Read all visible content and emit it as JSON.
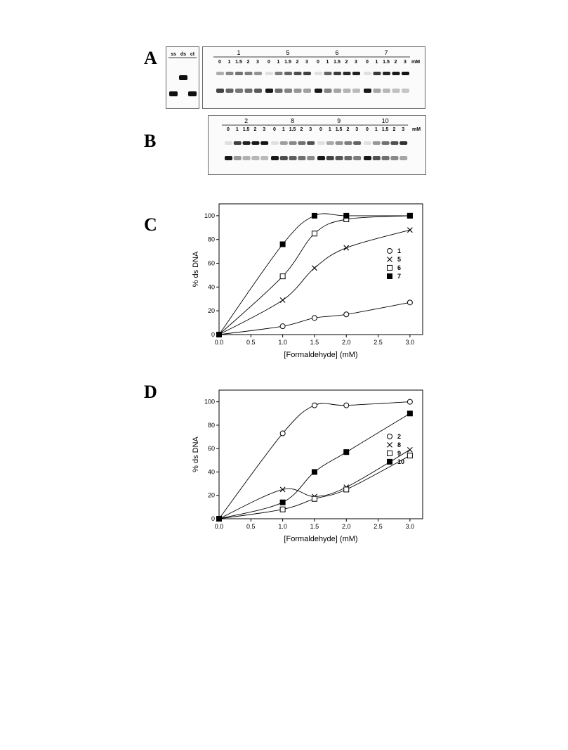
{
  "panel_labels": {
    "a": "A",
    "b": "B",
    "c": "C",
    "d": "D"
  },
  "gel_a": {
    "control_lane_labels": [
      "ss",
      "ds",
      "ct"
    ],
    "groups": [
      {
        "name": "1",
        "levels": [
          0.28,
          0.45,
          0.55,
          0.5,
          0.4
        ]
      },
      {
        "name": "5",
        "levels": [
          0.05,
          0.5,
          0.62,
          0.72,
          0.78
        ]
      },
      {
        "name": "6",
        "levels": [
          0.05,
          0.62,
          0.8,
          0.88,
          0.92
        ]
      },
      {
        "name": "7",
        "levels": [
          0.05,
          0.8,
          0.9,
          0.95,
          0.98
        ]
      }
    ],
    "conc_labels": [
      "0",
      "1",
      "1.5",
      "2",
      "3"
    ],
    "unit": "mM"
  },
  "gel_b": {
    "groups": [
      {
        "name": "2",
        "levels": [
          0.05,
          0.78,
          0.92,
          0.95,
          0.97
        ]
      },
      {
        "name": "8",
        "levels": [
          0.05,
          0.35,
          0.45,
          0.55,
          0.7
        ]
      },
      {
        "name": "9",
        "levels": [
          0.05,
          0.3,
          0.4,
          0.5,
          0.62
        ]
      },
      {
        "name": "10",
        "levels": [
          0.05,
          0.38,
          0.55,
          0.7,
          0.85
        ]
      }
    ],
    "conc_labels": [
      "0",
      "1",
      "1.5",
      "2",
      "3"
    ],
    "unit": "mM"
  },
  "chart_data": [
    {
      "panel": "C",
      "type": "scatter",
      "xlabel": "[Formaldehyde] (mM)",
      "ylabel": "% ds DNA",
      "xlim": [
        0,
        3.2
      ],
      "ylim": [
        0,
        110
      ],
      "xticks": [
        "0.0",
        "0.5",
        "1.0",
        "1.5",
        "2.0",
        "2.5",
        "3.0"
      ],
      "yticks": [
        "0",
        "20",
        "40",
        "60",
        "80",
        "100"
      ],
      "legend_position": "right",
      "series": [
        {
          "name": "1",
          "marker": "open-circle",
          "x": [
            0,
            1,
            1.5,
            2,
            3
          ],
          "y": [
            0,
            7,
            14,
            17,
            27
          ]
        },
        {
          "name": "5",
          "marker": "cross",
          "x": [
            0,
            1,
            1.5,
            2,
            3
          ],
          "y": [
            0,
            29,
            56,
            73,
            88
          ]
        },
        {
          "name": "6",
          "marker": "open-square",
          "x": [
            0,
            1,
            1.5,
            2,
            3
          ],
          "y": [
            0,
            49,
            85,
            97,
            100
          ]
        },
        {
          "name": "7",
          "marker": "filled-square",
          "x": [
            0,
            1,
            1.5,
            2,
            3
          ],
          "y": [
            0,
            76,
            100,
            100,
            100
          ]
        }
      ]
    },
    {
      "panel": "D",
      "type": "scatter",
      "xlabel": "[Formaldehyde] (mM)",
      "ylabel": "% ds DNA",
      "xlim": [
        0,
        3.2
      ],
      "ylim": [
        0,
        110
      ],
      "xticks": [
        "0.0",
        "0.5",
        "1.0",
        "1.5",
        "2.0",
        "2.5",
        "3.0"
      ],
      "yticks": [
        "0",
        "20",
        "40",
        "60",
        "80",
        "100"
      ],
      "legend_position": "right",
      "series": [
        {
          "name": "2",
          "marker": "open-circle",
          "x": [
            0,
            1,
            1.5,
            2,
            3
          ],
          "y": [
            0,
            73,
            97,
            97,
            100
          ]
        },
        {
          "name": "8",
          "marker": "cross",
          "x": [
            0,
            1,
            1.5,
            2,
            3
          ],
          "y": [
            0,
            25,
            19,
            27,
            59
          ]
        },
        {
          "name": "9",
          "marker": "open-square",
          "x": [
            0,
            1,
            1.5,
            2,
            3
          ],
          "y": [
            0,
            8,
            17,
            25,
            54
          ]
        },
        {
          "name": "10",
          "marker": "filled-square",
          "x": [
            0,
            1,
            1.5,
            2,
            3
          ],
          "y": [
            0,
            14,
            40,
            57,
            90
          ]
        }
      ]
    }
  ]
}
